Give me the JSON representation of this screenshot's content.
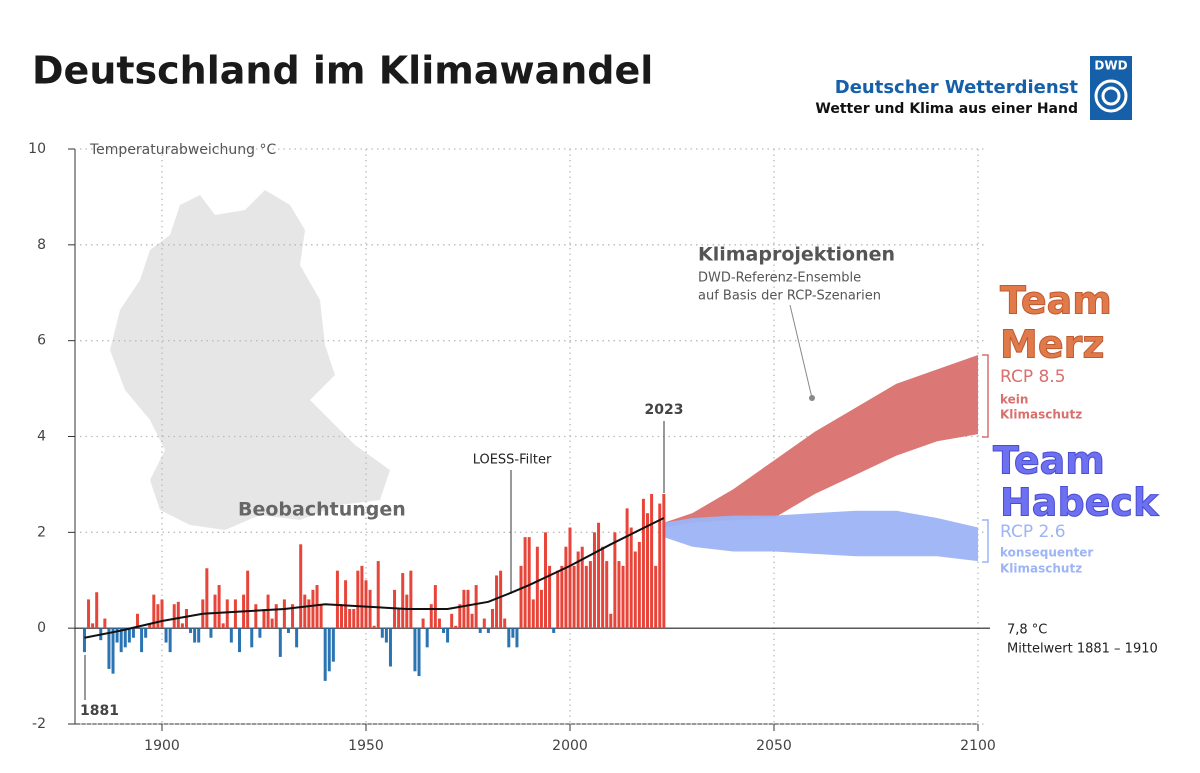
{
  "chart_data": {
    "type": "bar",
    "title": "Deutschland im Klimawandel",
    "brand": {
      "logo": "DWD",
      "name": "Deutscher Wetterdienst",
      "slogan": "Wetter und Klima aus einer Hand"
    },
    "y_label": "Temperaturabweichung °C",
    "annotations": {
      "observations": "Beobachtungen",
      "loess": "LOESS-Filter",
      "last_year": "2023",
      "first_year": "1881",
      "projections": "Klimaprojektionen",
      "projections_sub1": "DWD-Referenz-Ensemble",
      "projections_sub2": "auf Basis der RCP-Szenarien",
      "team_merz_1": "Team",
      "team_merz_2": "Merz",
      "rcp85_sub1": "kein",
      "rcp85_sub2": "Klimaschutz",
      "team_habeck_1": "Team",
      "team_habeck_2": "Habeck",
      "rcp26_sub1": "konsequenter",
      "rcp26_sub2": "Klimaschutz",
      "baseline": "7,8 °C",
      "baseline_sub": "Mittelwert 1881 – 1910"
    },
    "xlim": [
      1879,
      2100
    ],
    "xticks": [
      1900,
      1950,
      2000,
      2050,
      2100
    ],
    "ylim": [
      -2,
      10
    ],
    "yticks": [
      -2,
      0,
      2,
      4,
      6,
      8,
      10
    ],
    "grid": true,
    "positive_color": "#e8453a",
    "negative_color": "#2b74b4",
    "x": [
      1881,
      1882,
      1883,
      1884,
      1885,
      1886,
      1887,
      1888,
      1889,
      1890,
      1891,
      1892,
      1893,
      1894,
      1895,
      1896,
      1897,
      1898,
      1899,
      1900,
      1901,
      1902,
      1903,
      1904,
      1905,
      1906,
      1907,
      1908,
      1909,
      1910,
      1911,
      1912,
      1913,
      1914,
      1915,
      1916,
      1917,
      1918,
      1919,
      1920,
      1921,
      1922,
      1923,
      1924,
      1925,
      1926,
      1927,
      1928,
      1929,
      1930,
      1931,
      1932,
      1933,
      1934,
      1935,
      1936,
      1937,
      1938,
      1939,
      1940,
      1941,
      1942,
      1943,
      1944,
      1945,
      1946,
      1947,
      1948,
      1949,
      1950,
      1951,
      1952,
      1953,
      1954,
      1955,
      1956,
      1957,
      1958,
      1959,
      1960,
      1961,
      1962,
      1963,
      1964,
      1965,
      1966,
      1967,
      1968,
      1969,
      1970,
      1971,
      1972,
      1973,
      1974,
      1975,
      1976,
      1977,
      1978,
      1979,
      1980,
      1981,
      1982,
      1983,
      1984,
      1985,
      1986,
      1987,
      1988,
      1989,
      1990,
      1991,
      1992,
      1993,
      1994,
      1995,
      1996,
      1997,
      1998,
      1999,
      2000,
      2001,
      2002,
      2003,
      2004,
      2005,
      2006,
      2007,
      2008,
      2009,
      2010,
      2011,
      2012,
      2013,
      2014,
      2015,
      2016,
      2017,
      2018,
      2019,
      2020,
      2021,
      2022,
      2023
    ],
    "values": [
      -0.5,
      0.6,
      0.1,
      0.75,
      -0.25,
      0.2,
      -0.85,
      -0.95,
      -0.3,
      -0.5,
      -0.4,
      -0.3,
      -0.2,
      0.3,
      -0.5,
      -0.2,
      0.1,
      0.7,
      0.5,
      0.6,
      -0.3,
      -0.5,
      0.5,
      0.55,
      0.1,
      0.4,
      -0.1,
      -0.3,
      -0.3,
      0.6,
      1.25,
      -0.2,
      0.7,
      0.9,
      0.1,
      0.6,
      -0.3,
      0.6,
      -0.5,
      0.7,
      1.2,
      -0.4,
      0.5,
      -0.2,
      0.4,
      0.7,
      0.2,
      0.5,
      -0.6,
      0.6,
      -0.1,
      0.5,
      -0.4,
      1.75,
      0.7,
      0.6,
      0.8,
      0.9,
      0.5,
      -1.1,
      -0.9,
      -0.7,
      1.2,
      0.5,
      1.0,
      0.4,
      0.4,
      1.2,
      1.3,
      1.0,
      0.8,
      0.05,
      1.4,
      -0.2,
      -0.3,
      -0.8,
      0.8,
      0.4,
      1.15,
      0.7,
      1.2,
      -0.9,
      -1.0,
      0.2,
      -0.4,
      0.5,
      0.9,
      0.2,
      -0.1,
      -0.3,
      0.3,
      0.05,
      0.5,
      0.8,
      0.8,
      0.3,
      0.9,
      -0.1,
      0.2,
      -0.1,
      0.4,
      1.1,
      1.2,
      0.2,
      -0.4,
      -0.2,
      -0.4,
      1.3,
      1.9,
      1.9,
      0.6,
      1.7,
      0.8,
      2.0,
      1.3,
      -0.1,
      1.2,
      1.3,
      1.7,
      2.1,
      1.3,
      1.6,
      1.7,
      1.3,
      1.4,
      2.0,
      2.2,
      1.7,
      1.4,
      0.3,
      2.0,
      1.4,
      1.3,
      2.5,
      2.1,
      1.6,
      1.8,
      2.7,
      2.4,
      2.8,
      1.3,
      2.6,
      2.8
    ],
    "loess": {
      "color": "#111111",
      "x": [
        1881,
        1890,
        1900,
        1910,
        1920,
        1930,
        1940,
        1950,
        1960,
        1970,
        1980,
        1985,
        1990,
        2000,
        2010,
        2023
      ],
      "values": [
        -0.2,
        -0.05,
        0.15,
        0.3,
        0.35,
        0.4,
        0.5,
        0.45,
        0.4,
        0.4,
        0.55,
        0.72,
        0.9,
        1.3,
        1.75,
        2.3
      ]
    },
    "bands": [
      {
        "name": "RCP 8.5",
        "color": "#d9706e",
        "x": [
          2023,
          2030,
          2040,
          2050,
          2060,
          2070,
          2080,
          2090,
          2100
        ],
        "low": [
          2.1,
          2.2,
          2.25,
          2.3,
          2.8,
          3.2,
          3.6,
          3.9,
          4.05
        ],
        "high": [
          2.2,
          2.4,
          2.9,
          3.5,
          4.1,
          4.6,
          5.1,
          5.4,
          5.7
        ]
      },
      {
        "name": "RCP 2.6",
        "color": "#9db4f5",
        "x": [
          2023,
          2030,
          2040,
          2050,
          2060,
          2070,
          2080,
          2090,
          2100
        ],
        "low": [
          1.9,
          1.7,
          1.6,
          1.6,
          1.55,
          1.5,
          1.5,
          1.5,
          1.4
        ],
        "high": [
          2.2,
          2.3,
          2.35,
          2.35,
          2.4,
          2.45,
          2.45,
          2.3,
          2.1
        ]
      }
    ]
  }
}
